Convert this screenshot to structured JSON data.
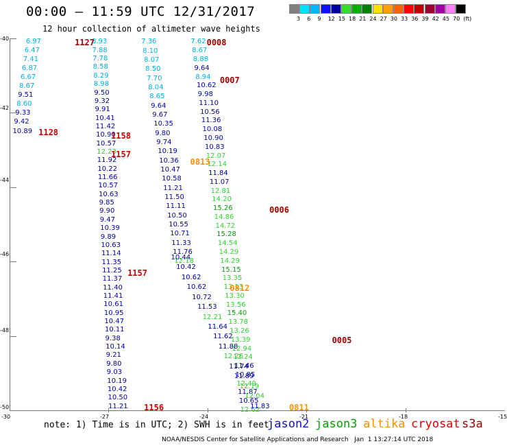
{
  "title": "00:00 – 11:59 UTC 12/31/2017",
  "subtitle": "12 hour collection of altimeter wave heights",
  "colorbar": {
    "labels": [
      "3",
      "6",
      "9",
      "12",
      "15",
      "18",
      "21",
      "24",
      "27",
      "30",
      "33",
      "36",
      "39",
      "42",
      "45",
      "70",
      "(ft)"
    ],
    "colors": [
      "#808080",
      "#00e0ff",
      "#00b8ff",
      "#1010ff",
      "#0000a0",
      "#30e030",
      "#00b000",
      "#008000",
      "#ffe000",
      "#ffa000",
      "#ff6000",
      "#ff0000",
      "#c00000",
      "#a00030",
      "#a000a0",
      "#ff80ff",
      "#000000"
    ]
  },
  "axes": {
    "y_labels": [
      "-40",
      "-42",
      "-44",
      "-46",
      "-48",
      "-50"
    ],
    "x_labels": [
      "-30",
      "-27",
      "-24",
      "-21",
      "-18",
      "-15"
    ]
  },
  "note": "note: 1) Time is in UTC; 2) SWH is in feet",
  "legend": [
    {
      "name": "jason2",
      "color": "#1010d0"
    },
    {
      "name": "jason3",
      "color": "#00a000"
    },
    {
      "name": "altika",
      "color": "#ff9000"
    },
    {
      "name": "cryosat",
      "color": "#e00000"
    },
    {
      "name": "s3a",
      "color": "#a00000"
    }
  ],
  "credit": "NOAA/NESDIS Center for Satellite Applications and Research   Jan  1 13:27:14 UTC 2018",
  "chart_data": {
    "type": "scatter",
    "title": "00:00 – 11:59 UTC 12/31/2017",
    "subtitle": "12 hour collection of altimeter wave heights",
    "units": "ft",
    "xlim": [
      -30,
      -15
    ],
    "ylim": [
      -50,
      -40
    ],
    "passes": [
      {
        "label": "1127",
        "satellite": "s3a",
        "color": "#a00000",
        "lon": -27.9,
        "lat": -40.1
      },
      {
        "label": "1128",
        "satellite": "cryosat",
        "color": "#d00000",
        "lon": -29.0,
        "lat": -42.5
      },
      {
        "label": "1158",
        "satellite": "cryosat",
        "color": "#d00000",
        "lon": -26.8,
        "lat": -42.6
      },
      {
        "label": "1157",
        "satellite": "cryosat",
        "color": "#d00000",
        "lon": -26.8,
        "lat": -43.1
      },
      {
        "label": "1157",
        "satellite": "cryosat",
        "color": "#d00000",
        "lon": -26.3,
        "lat": -46.3
      },
      {
        "label": "1156",
        "satellite": "cryosat",
        "color": "#d00000",
        "lon": -25.8,
        "lat": -49.9
      },
      {
        "label": "0008",
        "satellite": "s3a",
        "color": "#a00000",
        "lon": -23.9,
        "lat": -40.1
      },
      {
        "label": "0007",
        "satellite": "s3a",
        "color": "#a00000",
        "lon": -23.5,
        "lat": -41.1
      },
      {
        "label": "0006",
        "satellite": "s3a",
        "color": "#a00000",
        "lon": -22.0,
        "lat": -44.6
      },
      {
        "label": "0005",
        "satellite": "s3a",
        "color": "#a00000",
        "lon": -20.1,
        "lat": -48.1
      },
      {
        "label": "0813",
        "satellite": "altika",
        "color": "#ff9000",
        "lon": -24.4,
        "lat": -43.3
      },
      {
        "label": "0812",
        "satellite": "altika",
        "color": "#ff9000",
        "lon": -23.2,
        "lat": -46.7
      },
      {
        "label": "0811",
        "satellite": "altika",
        "color": "#ff9000",
        "lon": -21.4,
        "lat": -49.9
      }
    ],
    "tracks": [
      {
        "name": "track-1",
        "lon_top": -29.3,
        "lon_bottom": -29.7,
        "lat_top": -40.1,
        "lat_bottom": -42.5,
        "values": [
          "6.97",
          "6.47",
          "7.41",
          "6.87",
          "6.67",
          "8.67",
          "9.51",
          "8.60",
          "9.33",
          "9.42",
          "10.89"
        ],
        "colors": [
          "#00b0e0",
          "#00b0e0",
          "#00b0e0",
          "#00b0e0",
          "#00b0e0",
          "#00b0e0",
          "#0000a0",
          "#00b0e0",
          "#0000a0",
          "#0000a0",
          "#0000a0"
        ]
      },
      {
        "name": "track-2",
        "lon_top": -27.3,
        "lon_bottom": -26.8,
        "lat_top": -40.1,
        "lat_bottom": -49.9,
        "values": [
          "8.93",
          "7.88",
          "7.78",
          "8.58",
          "8.29",
          "8.98",
          "9.50",
          "9.32",
          "9.91",
          "10.41",
          "11.42",
          "10.90",
          "10.57",
          "12.23",
          "11.92",
          "10.22",
          "11.66",
          "10.57",
          "10.63",
          "9.85",
          "9.90",
          "9.47",
          "10.39",
          "9.89",
          "10.63",
          "11.14",
          "11.35",
          "11.25",
          "11.37",
          "11.40",
          "11.41",
          "10.61",
          "10.95",
          "10.47",
          "10.11",
          "9.38",
          "10.14",
          "9.21",
          "9.80",
          "9.03",
          "10.19",
          "10.42",
          "10.50",
          "11.21"
        ],
        "colors": [
          "#00b0e0",
          "#00b0e0",
          "#00b0e0",
          "#00b0e0",
          "#00b0e0",
          "#00b0e0",
          "#0000a0",
          "#0000a0",
          "#0000a0",
          "#0000a0",
          "#0000a0",
          "#0000a0",
          "#0000a0",
          "#30d030",
          "#0000a0",
          "#0000a0",
          "#0000a0",
          "#0000a0",
          "#0000a0",
          "#0000a0",
          "#0000a0",
          "#0000a0",
          "#0000a0",
          "#0000a0",
          "#0000a0",
          "#0000a0",
          "#0000a0",
          "#0000a0",
          "#0000a0",
          "#0000a0",
          "#0000a0",
          "#0000a0",
          "#0000a0",
          "#0000a0",
          "#0000a0",
          "#0000a0",
          "#0000a0",
          "#0000a0",
          "#0000a0",
          "#0000a0",
          "#0000a0",
          "#0000a0",
          "#0000a0",
          "#0000a0"
        ]
      },
      {
        "name": "track-3",
        "lon_top": -25.8,
        "lon_bottom": -24.8,
        "lat_top": -40.1,
        "lat_bottom": -46.0,
        "values": [
          "7.36",
          "8.10",
          "8.07",
          "8.50",
          "7.70",
          "8.04",
          "8.65",
          "9.64",
          "9.67",
          "10.35",
          "9.80",
          "9.74",
          "10.19",
          "10.36",
          "10.47",
          "10.58",
          "11.21",
          "11.50",
          "11.11",
          "10.50",
          "10.55",
          "10.71",
          "11.33",
          "11.76",
          "12.18"
        ],
        "colors": [
          "#00b0e0",
          "#00b0e0",
          "#00b0e0",
          "#00b0e0",
          "#00b0e0",
          "#00b0e0",
          "#00b0e0",
          "#0000a0",
          "#0000a0",
          "#0000a0",
          "#0000a0",
          "#0000a0",
          "#0000a0",
          "#0000a0",
          "#0000a0",
          "#0000a0",
          "#0000a0",
          "#0000a0",
          "#0000a0",
          "#0000a0",
          "#0000a0",
          "#0000a0",
          "#0000a0",
          "#0000a0",
          "#30d030"
        ]
      },
      {
        "name": "track-4",
        "lon_top": -24.3,
        "lon_bottom": -22.8,
        "lat_top": -40.1,
        "lat_bottom": -50.0,
        "values": [
          "7.62",
          "8.67",
          "8.88",
          "9.64",
          "8.94",
          "10.62",
          "9.98",
          "11.10",
          "10.56",
          "11.36",
          "10.08",
          "10.90",
          "10.83",
          "12.07",
          "12.14",
          "11.84",
          "11.07",
          "12.81",
          "14.20",
          "15.26",
          "14.86",
          "14.72",
          "15.28",
          "14.54",
          "14.29",
          "14.29",
          "15.15",
          "13.35",
          "13.13",
          "13.30",
          "13.56",
          "15.40",
          "13.78",
          "13.26",
          "13.39",
          "12.94",
          "12.24",
          "11.46",
          "10.85",
          "12.49",
          "11.87",
          "10.65",
          "12.62"
        ],
        "colors": [
          "#00b0e0",
          "#00b0e0",
          "#00b0e0",
          "#0000a0",
          "#00b0e0",
          "#0000a0",
          "#0000a0",
          "#0000a0",
          "#0000a0",
          "#0000a0",
          "#0000a0",
          "#0000a0",
          "#0000a0",
          "#30d030",
          "#30d030",
          "#0000a0",
          "#0000a0",
          "#30d030",
          "#30d030",
          "#00a000",
          "#30d030",
          "#30d030",
          "#00a000",
          "#30d030",
          "#30d030",
          "#30d030",
          "#00a000",
          "#30d030",
          "#30d030",
          "#30d030",
          "#30d030",
          "#00a000",
          "#30d030",
          "#30d030",
          "#30d030",
          "#30d030",
          "#30d030",
          "#0000a0",
          "#0000a0",
          "#30d030",
          "#0000a0",
          "#0000a0",
          "#30d030"
        ]
      },
      {
        "name": "track-5",
        "lon_top": -24.9,
        "lon_bottom": -22.5,
        "lat_top": -45.9,
        "lat_bottom": -49.9,
        "values": [
          "10.44",
          "10.42",
          "10.62",
          "10.62",
          "10.72",
          "11.53",
          "12.21",
          "11.64",
          "11.62",
          "11.88",
          "12.26",
          "11.74",
          "11.89",
          "12.19",
          "12.04",
          "11.83"
        ],
        "colors": [
          "#0000a0",
          "#0000a0",
          "#0000a0",
          "#0000a0",
          "#0000a0",
          "#0000a0",
          "#30d030",
          "#0000a0",
          "#0000a0",
          "#0000a0",
          "#30d030",
          "#0000a0",
          "#0000a0",
          "#30d030",
          "#30d030",
          "#0000a0"
        ]
      }
    ]
  }
}
